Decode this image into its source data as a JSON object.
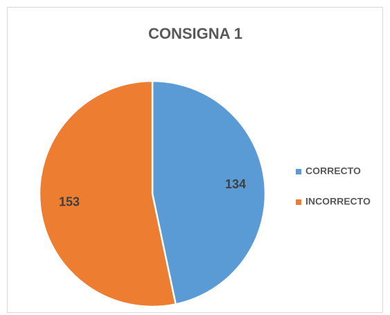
{
  "chart_data": {
    "type": "pie",
    "title": "CONSIGNA 1",
    "categories": [
      "CORRECTO",
      "INCORRECTO"
    ],
    "values": [
      134,
      153
    ],
    "colors": [
      "#5b9bd5",
      "#ed7d31"
    ],
    "legend": "right"
  }
}
